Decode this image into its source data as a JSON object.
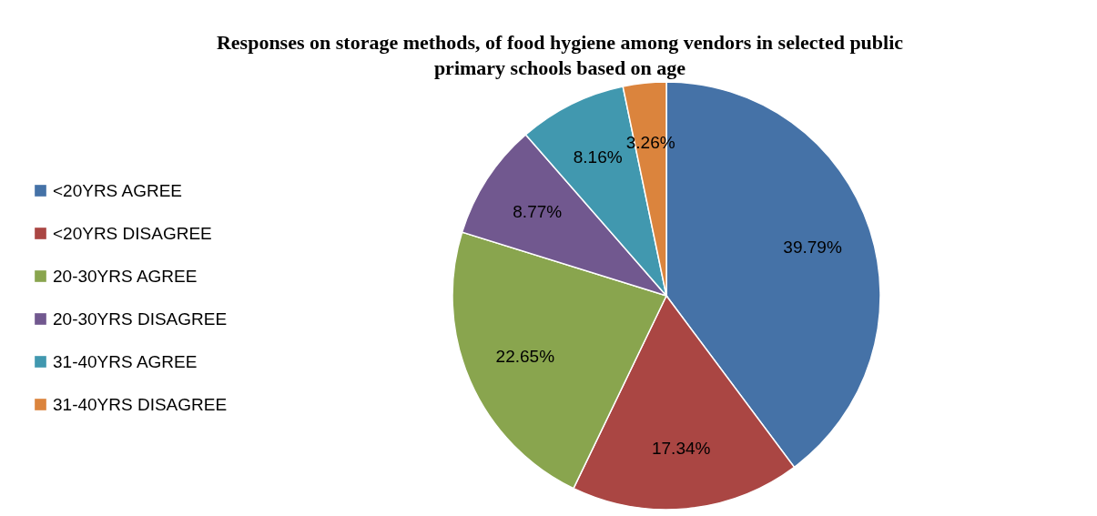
{
  "chart_data": {
    "type": "pie",
    "title": "Responses on storage methods, of food hygiene among vendors in selected public primary schools based on age",
    "categories": [
      "<20YRS AGREE",
      "<20YRS DISAGREE",
      "20-30YRS AGREE",
      "20-30YRS DISAGREE",
      "31-40YRS AGREE",
      "31-40YRS DISAGREE"
    ],
    "values": [
      39.79,
      17.34,
      22.65,
      8.77,
      8.16,
      3.26
    ],
    "colors": [
      "#4572a7",
      "#aa4643",
      "#89a54e",
      "#71588f",
      "#4198af",
      "#db843d"
    ],
    "value_labels": [
      "39.79%",
      "17.34%",
      "22.65%",
      "8.77%",
      "8.16%",
      "3.26%"
    ],
    "legend": "left"
  }
}
